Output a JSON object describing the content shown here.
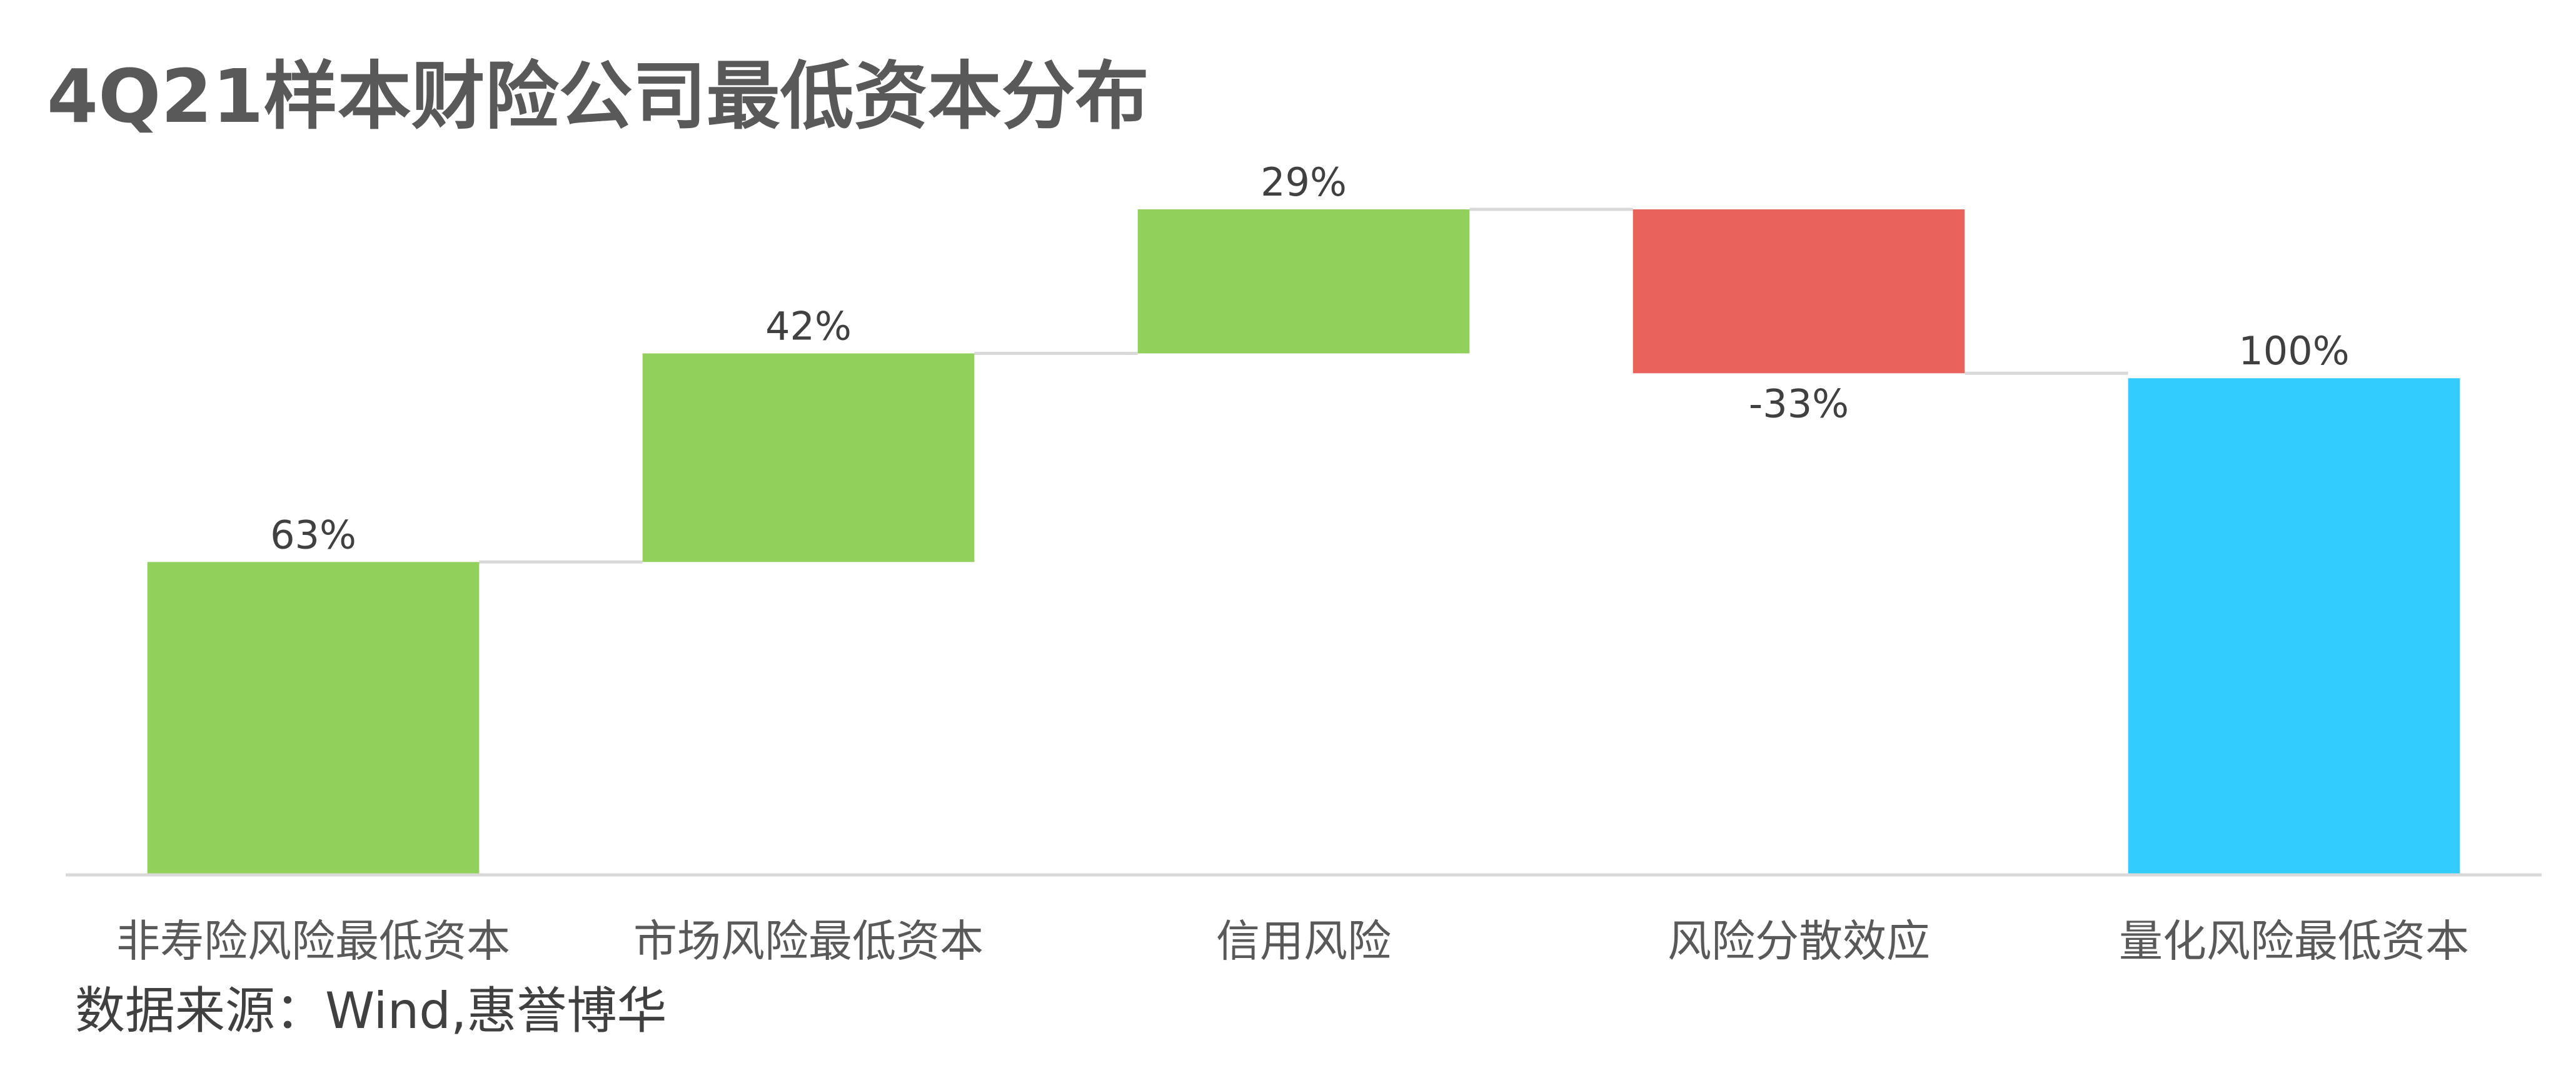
{
  "chart_data": {
    "type": "bar",
    "subtype": "waterfall",
    "title": "4Q21样本财险公司最低资本分布",
    "categories": [
      "非寿险风险最低资本",
      "市场风险最低资本",
      "信用风险",
      "风险分散效应",
      "量化风险最低资本"
    ],
    "values": [
      63,
      42,
      29,
      -33,
      100
    ],
    "data_labels": [
      "63%",
      "42%",
      "29%",
      "-33%",
      "100%"
    ],
    "kinds": [
      "increase",
      "increase",
      "increase",
      "decrease",
      "total"
    ],
    "ylim": [
      0,
      134
    ],
    "unit": "%",
    "grid": false,
    "legend": "none",
    "colors": {
      "increase": "#92D05C",
      "decrease": "#E9625B",
      "total": "#33CCFF",
      "connector": "#D9D9D9",
      "axis": "#D9D9D9"
    }
  },
  "source_note": "数据来源：Wind,惠誉博华"
}
